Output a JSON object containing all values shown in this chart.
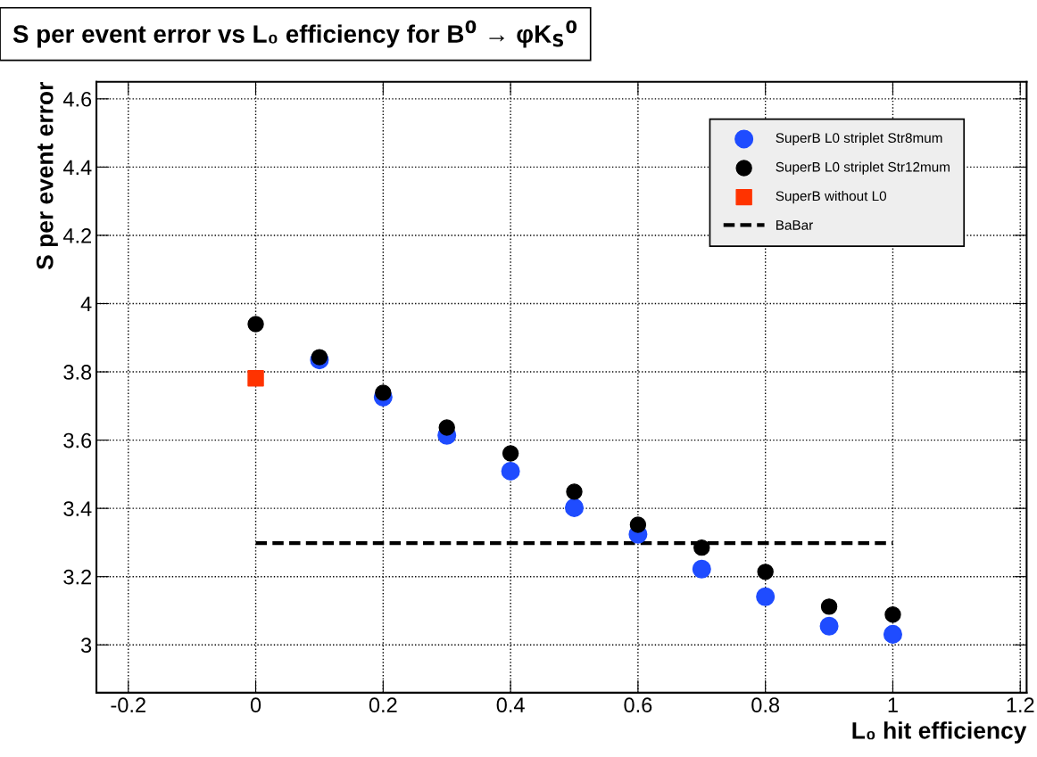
{
  "chart_data": {
    "type": "scatter",
    "title": "S per event error vs L₀ efficiency for B$^{0}$ → φK$_{S}$$^{0}$",
    "xlabel": "L₀ hit efficiency",
    "ylabel": "S per event error",
    "xlim": [
      -0.25,
      1.21
    ],
    "ylim": [
      2.86,
      4.65
    ],
    "xticks": [
      -0.2,
      0,
      0.2,
      0.4,
      0.6,
      0.8,
      1,
      1.2
    ],
    "yticks": [
      3,
      3.2,
      3.4,
      3.6,
      3.8,
      4,
      4.2,
      4.4,
      4.6
    ],
    "grid": true,
    "legend": "top right",
    "series": [
      {
        "name": "SuperB L0 striplet Str8mum",
        "color": "#1f4cff",
        "marker": "circle",
        "x": [
          0.1,
          0.2,
          0.3,
          0.4,
          0.5,
          0.6,
          0.7,
          0.8,
          0.9,
          1
        ],
        "values": [
          3.835,
          3.726,
          3.614,
          3.509,
          3.402,
          3.324,
          3.222,
          3.141,
          3.055,
          3.031
        ]
      },
      {
        "name": "SuperB L0 striplet Str12mum",
        "color": "#000000",
        "marker": "circle",
        "x": [
          0,
          0.1,
          0.2,
          0.3,
          0.4,
          0.5,
          0.6,
          0.7,
          0.8,
          0.9,
          1
        ],
        "values": [
          3.94,
          3.843,
          3.739,
          3.637,
          3.561,
          3.449,
          3.352,
          3.285,
          3.214,
          3.112,
          3.089
        ]
      },
      {
        "name": "SuperB without L0",
        "color": "#ff3300",
        "marker": "square",
        "x": [
          0
        ],
        "values": [
          3.781
        ]
      },
      {
        "name": "BaBar",
        "type": "line",
        "color": "#000000",
        "marker": "none",
        "line_style": "dashed",
        "x": [
          0,
          1
        ],
        "values": [
          3.298,
          3.298
        ]
      }
    ]
  }
}
